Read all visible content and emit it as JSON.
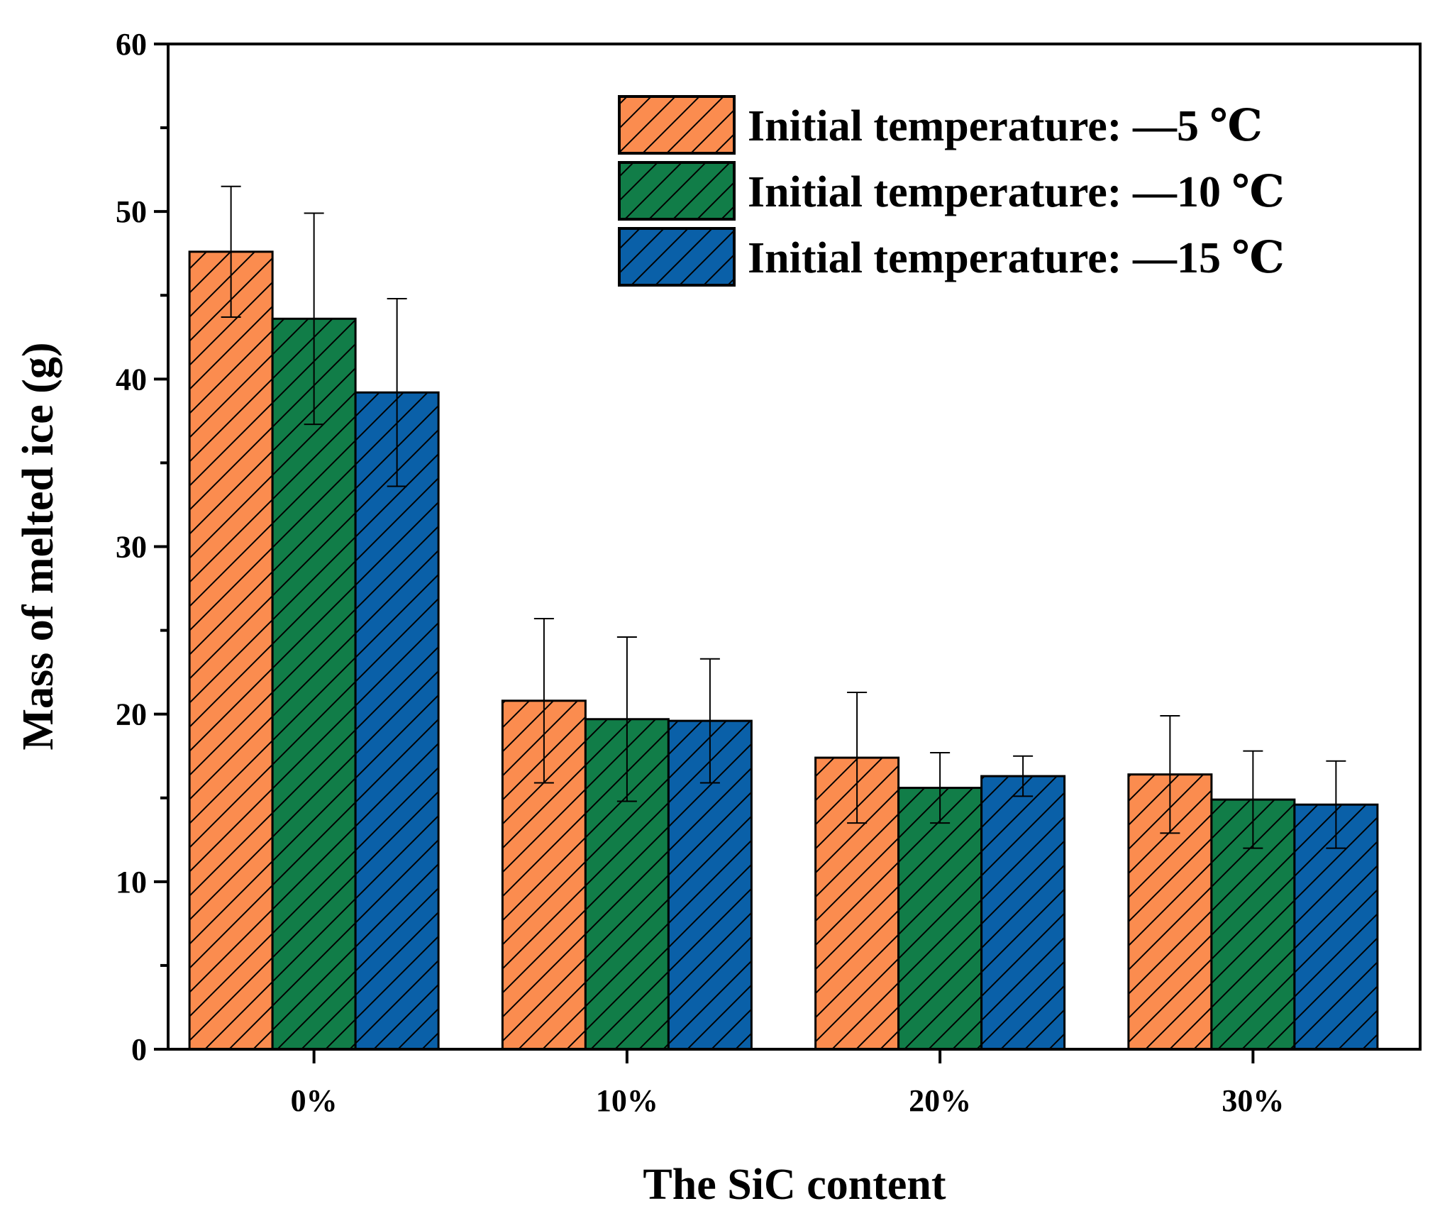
{
  "chart_data": {
    "type": "bar",
    "title": "",
    "xlabel": "The SiC content",
    "ylabel": "Mass of melted ice (g)",
    "ylim": [
      0,
      60
    ],
    "yticks": [
      "0",
      "10",
      "20",
      "30",
      "40",
      "50",
      "60"
    ],
    "categories": [
      "0%",
      "10%",
      "20%",
      "30%"
    ],
    "legend_position": "top-right",
    "grid": false,
    "series": [
      {
        "name": "Initial temperature: —5 ℃",
        "color": "#fb8c4f",
        "values": [
          47.6,
          20.8,
          17.4,
          16.4
        ],
        "errors": [
          3.9,
          4.9,
          3.9,
          3.5
        ]
      },
      {
        "name": "Initial temperature: —10 ℃",
        "color": "#117d48",
        "values": [
          43.6,
          19.7,
          15.6,
          14.9
        ],
        "errors": [
          6.3,
          4.9,
          2.1,
          2.9
        ]
      },
      {
        "name": "Initial temperature: —15 ℃",
        "color": "#0a60a8",
        "values": [
          39.2,
          19.6,
          16.3,
          14.6
        ],
        "errors": [
          5.6,
          3.7,
          1.2,
          2.6
        ]
      }
    ]
  }
}
